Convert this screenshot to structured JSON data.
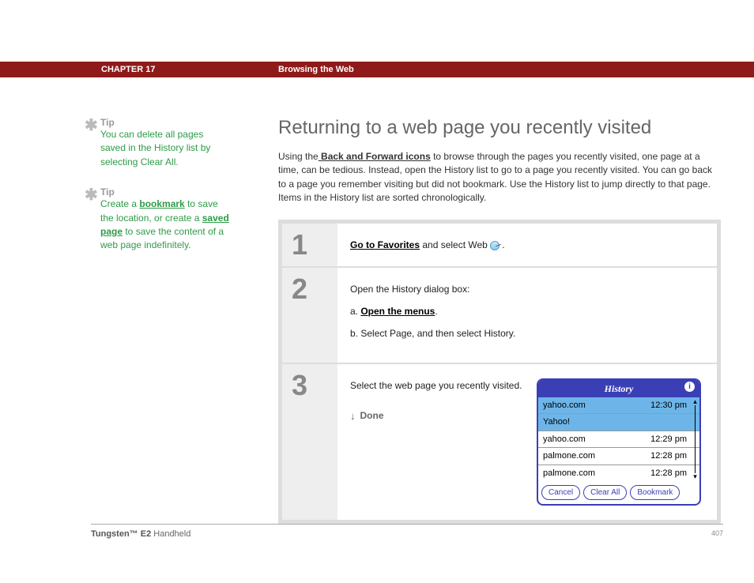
{
  "header": {
    "chapter": "CHAPTER 17",
    "title": "Browsing the Web"
  },
  "sidebar": {
    "tips": [
      {
        "label": "Tip",
        "text_before": "You can delete all pages saved in the History list by selecting Clear All.",
        "links": []
      },
      {
        "label": "Tip",
        "segments": [
          {
            "t": "Create a "
          },
          {
            "t": "bookmark",
            "link": true
          },
          {
            "t": " to save the location, or create a "
          },
          {
            "t": "saved page",
            "link": true
          },
          {
            "t": " to save the content of a web page indefinitely."
          }
        ]
      }
    ]
  },
  "main": {
    "title": "Returning to a web page you recently visited",
    "intro": {
      "pre": "Using the",
      "link": " Back and Forward icons",
      "post": " to browse through the pages you recently visited, one page at a time, can be tedious. Instead, open the History list to go to a page you recently visited. You can go back to a page you remember visiting but did not bookmark. Use the History list to jump directly to that page. Items in the History list are sorted chronologically."
    },
    "steps": [
      {
        "num": "1",
        "link": "Go to Favorites",
        "rest": " and select Web ",
        "tail": "."
      },
      {
        "num": "2",
        "lead": "Open the History dialog box:",
        "items": [
          {
            "prefix": "a.  ",
            "link": "Open the menus",
            "suffix": "."
          },
          {
            "prefix": "b.  ",
            "text": "Select Page, and then select History."
          }
        ]
      },
      {
        "num": "3",
        "text": "Select the web page you recently visited.",
        "done": "Done"
      }
    ]
  },
  "history_dialog": {
    "title": "History",
    "items": [
      {
        "label": "yahoo.com",
        "time": "12:30 pm",
        "selected": true
      },
      {
        "label": "Yahoo!",
        "time": "",
        "sub": true
      },
      {
        "label": "yahoo.com",
        "time": "12:29 pm"
      },
      {
        "label": "palmone.com",
        "time": "12:28 pm"
      },
      {
        "label": "palmone.com",
        "time": "12:28 pm"
      }
    ],
    "buttons": [
      "Cancel",
      "Clear All",
      "Bookmark"
    ],
    "colors": {
      "border": "#3a3fb5",
      "selected_bg": "#6db5e8"
    }
  },
  "footer": {
    "product_bold": "Tungsten™ E2",
    "product_rest": " Handheld",
    "page": "407"
  }
}
